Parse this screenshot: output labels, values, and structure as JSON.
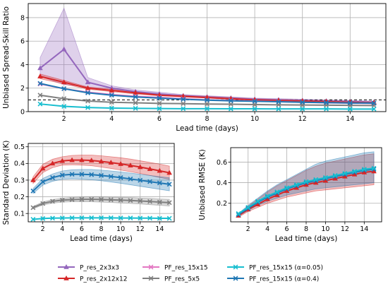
{
  "chart_data": [
    {
      "type": "line",
      "id": "top",
      "xlabel": "Lead time (days)",
      "ylabel": "Unbiased Spread-Skill Ratio",
      "xlim": [
        0.5,
        15.5
      ],
      "ylim": [
        0,
        9.2
      ],
      "xticks": [
        2,
        4,
        6,
        8,
        10,
        12,
        14
      ],
      "yticks": [
        0,
        2,
        4,
        6,
        8
      ],
      "grid": true,
      "reference_line": 1.0,
      "x": [
        1,
        2,
        3,
        4,
        5,
        6,
        7,
        8,
        9,
        10,
        11,
        12,
        13,
        14,
        15
      ],
      "series": [
        {
          "key": "p3",
          "values": [
            3.7,
            5.3,
            2.5,
            2.0,
            1.7,
            1.5,
            1.35,
            1.25,
            1.15,
            1.05,
            1.0,
            0.95,
            0.9,
            0.85,
            0.8
          ],
          "band_lo": [
            3.0,
            2.3,
            2.1,
            1.8,
            1.55,
            1.4,
            1.25,
            1.15,
            1.05,
            1.0,
            0.95,
            0.9,
            0.85,
            0.8,
            0.75
          ],
          "band_hi": [
            4.6,
            8.8,
            2.9,
            2.2,
            1.85,
            1.65,
            1.45,
            1.35,
            1.25,
            1.15,
            1.1,
            1.05,
            1.0,
            0.95,
            0.9
          ]
        },
        {
          "key": "p12",
          "values": [
            3.0,
            2.5,
            2.0,
            1.8,
            1.6,
            1.4,
            1.3,
            1.2,
            1.1,
            1.0,
            0.95,
            0.9,
            0.85,
            0.8,
            0.75
          ],
          "band_lo": [
            2.8,
            2.35,
            1.9,
            1.7,
            1.5,
            1.35,
            1.25,
            1.15,
            1.05,
            0.95,
            0.9,
            0.85,
            0.8,
            0.75,
            0.7
          ],
          "band_hi": [
            3.2,
            2.65,
            2.1,
            1.9,
            1.7,
            1.5,
            1.4,
            1.3,
            1.2,
            1.1,
            1.05,
            1.0,
            0.95,
            0.9,
            0.85
          ]
        },
        {
          "key": "pf15",
          "values": [
            2.35,
            1.95,
            1.65,
            1.45,
            1.3,
            1.2,
            1.1,
            1.0,
            0.95,
            0.9,
            0.85,
            0.8,
            0.75,
            0.72,
            0.7
          ]
        },
        {
          "key": "pf5",
          "values": [
            1.4,
            1.1,
            0.9,
            0.8,
            0.75,
            0.7,
            0.68,
            0.65,
            0.63,
            0.6,
            0.58,
            0.56,
            0.55,
            0.53,
            0.52
          ]
        },
        {
          "key": "a05",
          "values": [
            0.65,
            0.45,
            0.35,
            0.3,
            0.28,
            0.26,
            0.25,
            0.25,
            0.24,
            0.24,
            0.23,
            0.23,
            0.23,
            0.22,
            0.22
          ]
        },
        {
          "key": "a04",
          "values": [
            2.4,
            1.95,
            1.6,
            1.4,
            1.25,
            1.15,
            1.05,
            0.98,
            0.92,
            0.88,
            0.84,
            0.8,
            0.77,
            0.74,
            0.72
          ]
        }
      ]
    },
    {
      "type": "line",
      "id": "bl",
      "xlabel": "Lead time (days)",
      "ylabel": "Standard Deviation (K)",
      "xlim": [
        0.5,
        15.5
      ],
      "ylim": [
        0.05,
        0.52
      ],
      "xticks": [
        2,
        4,
        6,
        8,
        10,
        12,
        14
      ],
      "yticks": [
        0.1,
        0.2,
        0.3,
        0.4,
        0.5
      ],
      "grid": true,
      "x": [
        1,
        2,
        3,
        4,
        5,
        6,
        7,
        8,
        9,
        10,
        11,
        12,
        13,
        14,
        15
      ],
      "series": [
        {
          "key": "p12",
          "values": [
            0.3,
            0.37,
            0.4,
            0.415,
            0.42,
            0.42,
            0.418,
            0.412,
            0.405,
            0.397,
            0.388,
            0.378,
            0.367,
            0.356,
            0.344
          ],
          "band_lo": [
            0.28,
            0.345,
            0.375,
            0.39,
            0.392,
            0.39,
            0.386,
            0.378,
            0.37,
            0.36,
            0.35,
            0.34,
            0.328,
            0.316,
            0.305
          ],
          "band_hi": [
            0.32,
            0.395,
            0.425,
            0.44,
            0.448,
            0.45,
            0.45,
            0.446,
            0.44,
            0.434,
            0.426,
            0.416,
            0.406,
            0.396,
            0.384
          ]
        },
        {
          "key": "a04",
          "values": [
            0.235,
            0.29,
            0.315,
            0.33,
            0.335,
            0.335,
            0.333,
            0.328,
            0.322,
            0.315,
            0.307,
            0.299,
            0.291,
            0.283,
            0.275
          ],
          "band_lo": [
            0.22,
            0.27,
            0.293,
            0.305,
            0.308,
            0.306,
            0.302,
            0.296,
            0.289,
            0.281,
            0.272,
            0.263,
            0.254,
            0.245,
            0.236
          ],
          "band_hi": [
            0.25,
            0.31,
            0.337,
            0.355,
            0.362,
            0.364,
            0.364,
            0.36,
            0.355,
            0.349,
            0.342,
            0.335,
            0.328,
            0.321,
            0.314
          ]
        },
        {
          "key": "pf5",
          "values": [
            0.135,
            0.16,
            0.173,
            0.18,
            0.183,
            0.185,
            0.185,
            0.184,
            0.182,
            0.18,
            0.178,
            0.175,
            0.172,
            0.168,
            0.165
          ],
          "band_lo": [
            0.128,
            0.151,
            0.162,
            0.168,
            0.17,
            0.171,
            0.17,
            0.168,
            0.166,
            0.163,
            0.16,
            0.157,
            0.153,
            0.149,
            0.145
          ],
          "band_hi": [
            0.142,
            0.169,
            0.184,
            0.192,
            0.196,
            0.199,
            0.2,
            0.2,
            0.198,
            0.197,
            0.196,
            0.193,
            0.191,
            0.187,
            0.185
          ]
        },
        {
          "key": "a05",
          "values": [
            0.065,
            0.07,
            0.072,
            0.073,
            0.074,
            0.074,
            0.074,
            0.074,
            0.074,
            0.073,
            0.073,
            0.072,
            0.072,
            0.071,
            0.071
          ]
        }
      ]
    },
    {
      "type": "line",
      "id": "br",
      "xlabel": "Lead time (days)",
      "ylabel": "Unbiased RMSE (K)",
      "xlim": [
        0.2,
        15.8
      ],
      "ylim": [
        0.02,
        0.74
      ],
      "xticks": [
        2,
        4,
        6,
        8,
        10,
        12,
        14
      ],
      "yticks": [
        0.2,
        0.4,
        0.6
      ],
      "grid": true,
      "x": [
        1,
        2,
        3,
        4,
        5,
        6,
        7,
        8,
        9,
        10,
        11,
        12,
        13,
        14,
        15
      ],
      "series": [
        {
          "key": "p12",
          "values": [
            0.08,
            0.14,
            0.19,
            0.24,
            0.28,
            0.32,
            0.35,
            0.38,
            0.4,
            0.42,
            0.44,
            0.46,
            0.48,
            0.5,
            0.51
          ],
          "band_lo": [
            0.065,
            0.12,
            0.16,
            0.2,
            0.23,
            0.26,
            0.28,
            0.3,
            0.32,
            0.33,
            0.34,
            0.35,
            0.36,
            0.37,
            0.38
          ],
          "band_hi": [
            0.095,
            0.17,
            0.24,
            0.31,
            0.37,
            0.42,
            0.47,
            0.52,
            0.56,
            0.59,
            0.61,
            0.63,
            0.65,
            0.67,
            0.68
          ]
        },
        {
          "key": "a04",
          "values": [
            0.09,
            0.15,
            0.21,
            0.26,
            0.3,
            0.34,
            0.37,
            0.4,
            0.42,
            0.44,
            0.46,
            0.48,
            0.5,
            0.52,
            0.53
          ],
          "band_lo": [
            0.075,
            0.13,
            0.18,
            0.22,
            0.25,
            0.28,
            0.3,
            0.32,
            0.34,
            0.35,
            0.36,
            0.37,
            0.38,
            0.39,
            0.4
          ],
          "band_hi": [
            0.1,
            0.18,
            0.25,
            0.32,
            0.38,
            0.43,
            0.48,
            0.53,
            0.58,
            0.61,
            0.63,
            0.65,
            0.67,
            0.69,
            0.7
          ]
        },
        {
          "key": "a05",
          "values": [
            0.1,
            0.16,
            0.22,
            0.27,
            0.31,
            0.35,
            0.38,
            0.41,
            0.43,
            0.45,
            0.47,
            0.49,
            0.51,
            0.53,
            0.54
          ]
        }
      ]
    }
  ],
  "legend": {
    "placement": "bottom",
    "entries": [
      {
        "key": "p3",
        "label": "P_res_2x3x3",
        "color": "#9467bd",
        "marker": "triangle"
      },
      {
        "key": "p12",
        "label": "P_res_2x12x12",
        "color": "#d62728",
        "marker": "triangle"
      },
      {
        "key": "pf15",
        "label": "PF_res_15x15",
        "color": "#e377c2",
        "marker": "x"
      },
      {
        "key": "pf5",
        "label": "PF_res_5x5",
        "color": "#7f7f7f",
        "marker": "x"
      },
      {
        "key": "a05",
        "label": "PF_res_15x15 (α=0.05)",
        "color": "#17becf",
        "marker": "x"
      },
      {
        "key": "a04",
        "label": "PF_res_15x15 (α=0.4)",
        "color": "#1f77b4",
        "marker": "x"
      }
    ]
  }
}
